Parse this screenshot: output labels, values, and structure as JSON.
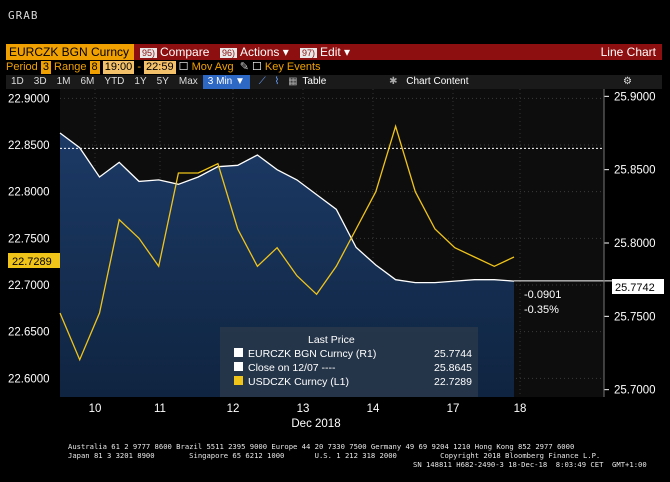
{
  "header": {
    "grab": "GRAB"
  },
  "toolbar": {
    "ticker": "EURCZK BGN Curncy",
    "compare_num": "95)",
    "compare": "Compare",
    "actions_num": "96)",
    "actions": "Actions",
    "edit_num": "97)",
    "edit": "Edit",
    "chart_type": "Line Chart"
  },
  "settings": {
    "period_label": "Period",
    "period_value": "3",
    "range_label": "Range",
    "range_value": "8",
    "time_from": "19:00",
    "time_to": "22:59",
    "mov_avg": "Mov Avg",
    "key_events": "Key Events"
  },
  "zoom": {
    "buttons": [
      "1D",
      "3D",
      "1M",
      "6M",
      "YTD",
      "1Y",
      "5Y",
      "Max"
    ],
    "selected": "3 Min",
    "table": "Table",
    "chart_content": "Chart Content"
  },
  "chart_data": {
    "type": "line",
    "x_labels": [
      "10",
      "11",
      "12",
      "13",
      "14",
      "17",
      "18"
    ],
    "x_sublabel": "Dec 2018",
    "left_axis": {
      "ticks": [
        "22.9000",
        "22.8500",
        "22.8000",
        "22.7500",
        "22.7000",
        "22.6500",
        "22.6000"
      ],
      "ylim": [
        22.58,
        22.91
      ]
    },
    "right_axis": {
      "ticks": [
        "25.9000",
        "25.8500",
        "25.8000",
        "25.7500",
        "25.7000"
      ],
      "ylim": [
        25.695,
        25.905
      ]
    },
    "series": [
      {
        "name": "EURCZK BGN Curncy (R1)",
        "color": "#ffffff",
        "axis": "right",
        "values": [
          25.875,
          25.865,
          25.845,
          25.855,
          25.842,
          25.843,
          25.84,
          25.845,
          25.852,
          25.853,
          25.86,
          25.85,
          25.843,
          25.833,
          25.823,
          25.797,
          25.785,
          25.775,
          25.773,
          25.773,
          25.774,
          25.775,
          25.775,
          25.774
        ]
      },
      {
        "name": "USDCZK Curncy (L1)",
        "color": "#f0c419",
        "axis": "left",
        "values": [
          22.67,
          22.62,
          22.67,
          22.77,
          22.75,
          22.72,
          22.82,
          22.82,
          22.83,
          22.76,
          22.72,
          22.74,
          22.71,
          22.69,
          22.72,
          22.76,
          22.8,
          22.87,
          22.8,
          22.76,
          22.74,
          22.73,
          22.72,
          22.73
        ]
      }
    ],
    "last_price_title": "Last Price",
    "legend": [
      {
        "label": "EURCZK BGN Curncy (R1)",
        "value": "25.7744",
        "color": "#ffffff"
      },
      {
        "label": "Close on 12/07 ----",
        "value": "25.8645",
        "color": "#ffffff"
      },
      {
        "label": "USDCZK Curncy (L1)",
        "value": "22.7289",
        "color": "#f0c419"
      }
    ],
    "left_last": "22.7289",
    "right_last": "25.7742",
    "change_abs": "-0.0901",
    "change_pct": "-0.35%"
  },
  "footer": {
    "line1": "Australia 61 2 9777 8600 Brazil 5511 2395 9000 Europe 44 20 7330 7500 Germany 49 69 9204 1210 Hong Kong 852 2977 6000",
    "line2": "Japan 81 3 3201 8900        Singapore 65 6212 1000       U.S. 1 212 318 2000          Copyright 2018 Bloomberg Finance L.P.",
    "line3": "SN 148811 H682-2490-3 18-Dec-18  8:03:49 CET  GMT+1:00"
  }
}
